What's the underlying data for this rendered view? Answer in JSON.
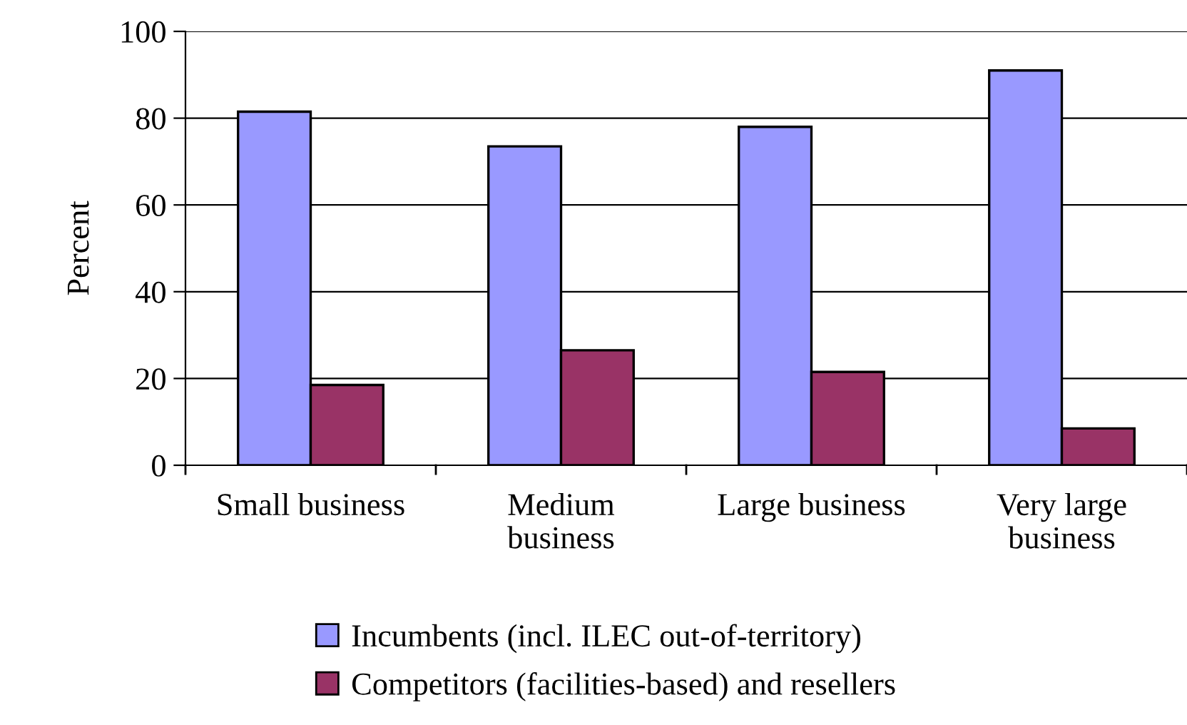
{
  "chart_data": {
    "type": "bar",
    "ylabel": "Percent",
    "categories": [
      "Small business",
      "Medium business",
      "Large business",
      "Very large business"
    ],
    "series": [
      {
        "name": "Incumbents (incl. ILEC out-of-territory)",
        "color": "#9999ff",
        "values": [
          81.5,
          73.5,
          78,
          91
        ]
      },
      {
        "name": "Competitors (facilities-based) and resellers",
        "color": "#993366",
        "values": [
          18.5,
          26.5,
          21.5,
          8.5
        ]
      }
    ],
    "ylim": [
      0,
      100
    ],
    "yticks": [
      0,
      20,
      40,
      60,
      80,
      100
    ],
    "grid": "y",
    "legend": "bottom"
  }
}
